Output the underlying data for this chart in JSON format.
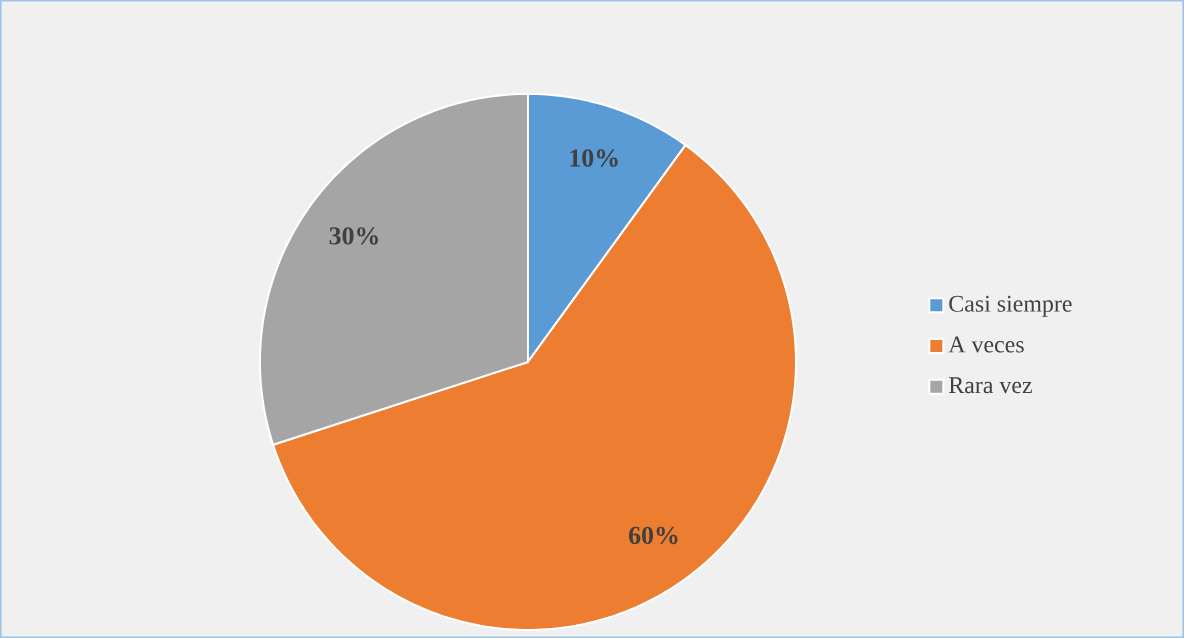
{
  "chart_data": {
    "type": "pie",
    "categories": [
      "Casi siempre",
      "A veces",
      "Rara vez"
    ],
    "values": [
      10,
      60,
      30
    ],
    "value_labels": [
      "10%",
      "60%",
      "30%"
    ],
    "colors": [
      "#5b9bd5",
      "#ed7d31",
      "#a5a5a5"
    ],
    "legend": "right"
  }
}
